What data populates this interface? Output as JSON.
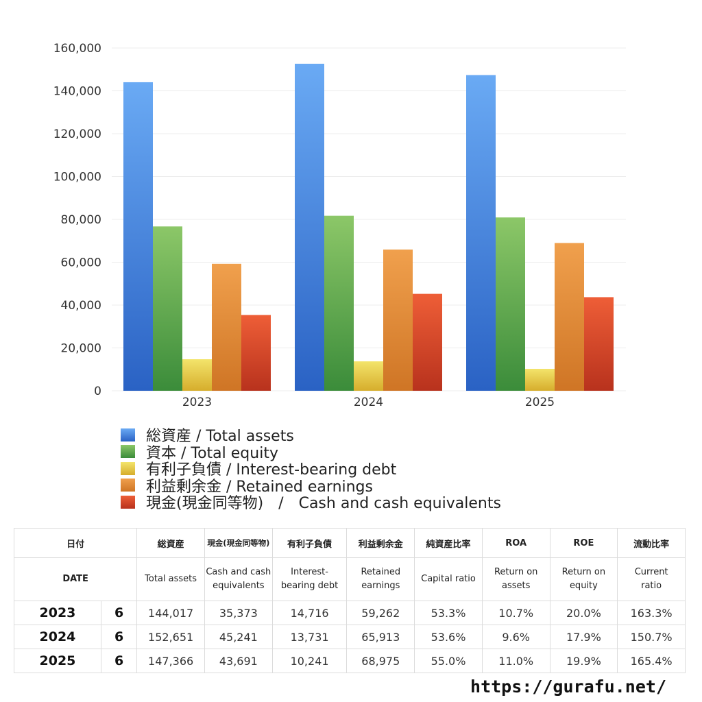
{
  "chart_data": {
    "type": "bar",
    "categories": [
      "2023",
      "2024",
      "2025"
    ],
    "series": [
      {
        "name": "総資産 / Total assets",
        "values": [
          144017,
          152651,
          147366
        ],
        "color_top": "#6aaaf4",
        "color_bottom": "#2a62c4"
      },
      {
        "name": "資本 / Total equity",
        "values": [
          76700,
          81700,
          80900
        ],
        "color_top": "#8cc768",
        "color_bottom": "#3b8c3a"
      },
      {
        "name": "有利子負債 / Interest-bearing debt",
        "values": [
          14716,
          13731,
          10241
        ],
        "color_top": "#f3e46b",
        "color_bottom": "#d6ad2c"
      },
      {
        "name": "利益剰余金 / Retained earnings",
        "values": [
          59262,
          65913,
          68975
        ],
        "color_top": "#f0a04d",
        "color_bottom": "#cf7525"
      },
      {
        "name": "現金(現金同等物)　/　Cash and cash equivalents",
        "values": [
          35373,
          45241,
          43691
        ],
        "color_top": "#ee5e37",
        "color_bottom": "#b8321d"
      }
    ],
    "ylim": [
      0,
      160000
    ],
    "yticks": [
      "0",
      "20,000",
      "40,000",
      "60,000",
      "80,000",
      "100,000",
      "120,000",
      "140,000",
      "160,000"
    ],
    "title": "",
    "xlabel": "",
    "ylabel": "",
    "grid": true,
    "legend_position": "bottom-left"
  },
  "table": {
    "header_jp": [
      "日付",
      "総資産",
      "現金(現金同等物)",
      "有利子負債",
      "利益剰余金",
      "純資産比率",
      "ROA",
      "ROE",
      "流動比率"
    ],
    "header_en": [
      "DATE",
      "Total assets",
      "Cash and cash equivalents",
      "Interest-bearing debt",
      "Retained earnings",
      "Capital ratio",
      "Return on assets",
      "Return on equity",
      "Current ratio"
    ],
    "rows": [
      {
        "year": "2023",
        "month": "6",
        "values": [
          "144,017",
          "35,373",
          "14,716",
          "59,262",
          "53.3%",
          "10.7%",
          "20.0%",
          "163.3%"
        ]
      },
      {
        "year": "2024",
        "month": "6",
        "values": [
          "152,651",
          "45,241",
          "13,731",
          "65,913",
          "53.6%",
          "9.6%",
          "17.9%",
          "150.7%"
        ]
      },
      {
        "year": "2025",
        "month": "6",
        "values": [
          "147,366",
          "43,691",
          "10,241",
          "68,975",
          "55.0%",
          "11.0%",
          "19.9%",
          "165.4%"
        ]
      }
    ]
  },
  "footer": {
    "url": "https://gurafu.net/"
  }
}
